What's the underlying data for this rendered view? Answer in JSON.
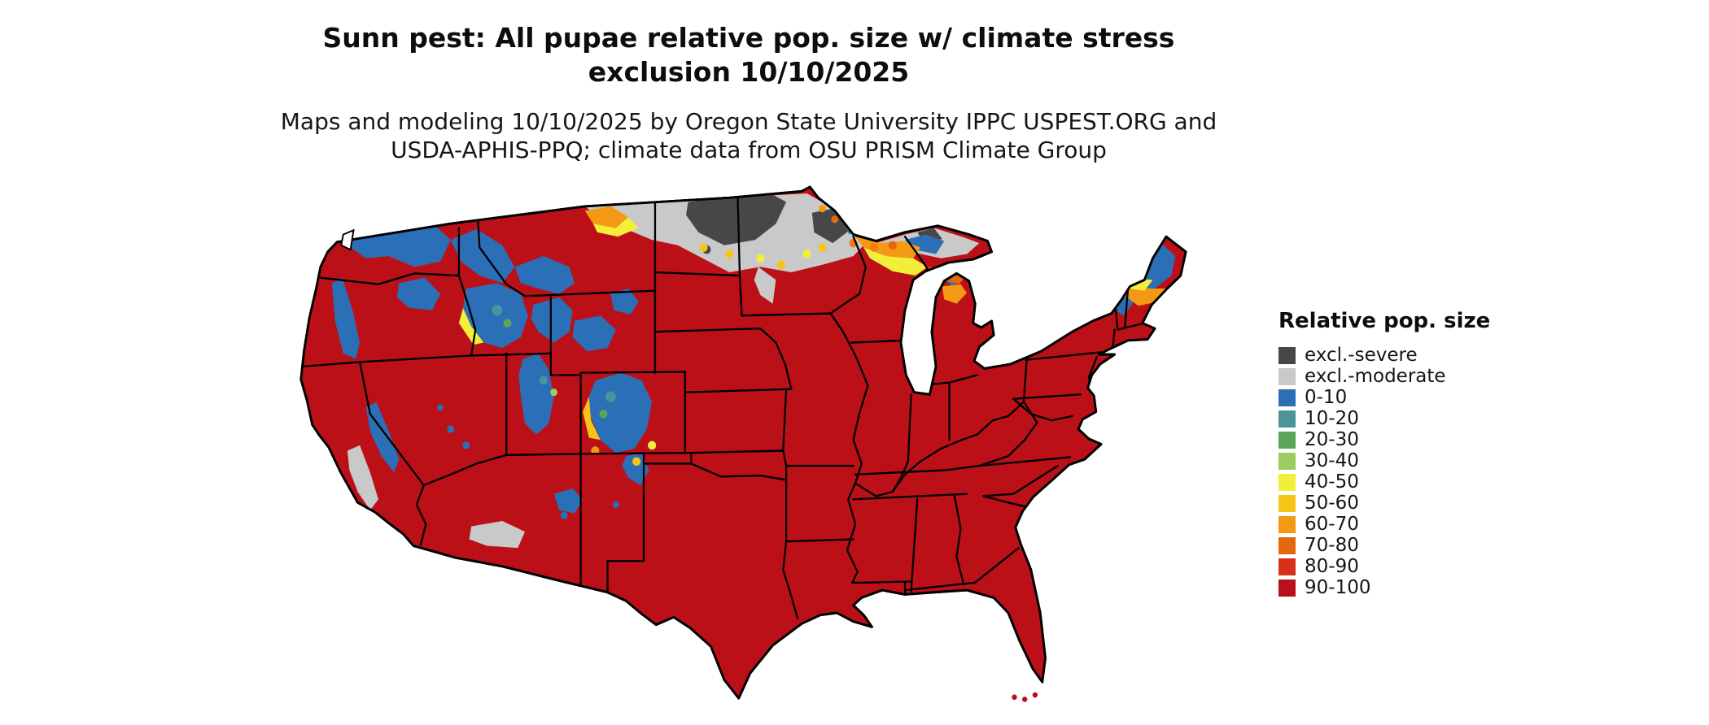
{
  "title": {
    "line1": "Sunn pest: All pupae relative pop. size w/ climate stress",
    "line2": "exclusion 10/10/2025"
  },
  "subtitle": {
    "line1": "Maps and modeling 10/10/2025 by Oregon State University IPPC USPEST.ORG and",
    "line2": "USDA-APHIS-PPQ; climate data from OSU PRISM Climate Group"
  },
  "legend": {
    "title": "Relative pop. size",
    "items": [
      {
        "label": "excl.-severe",
        "color": "#474747"
      },
      {
        "label": "excl.-moderate",
        "color": "#c9c9c9"
      },
      {
        "label": "0-10",
        "color": "#2b6fb7"
      },
      {
        "label": "10-20",
        "color": "#49959b"
      },
      {
        "label": "20-30",
        "color": "#5aa55a"
      },
      {
        "label": "30-40",
        "color": "#9ccb62"
      },
      {
        "label": "40-50",
        "color": "#f2ee3a"
      },
      {
        "label": "50-60",
        "color": "#f6c51a"
      },
      {
        "label": "60-70",
        "color": "#f49914"
      },
      {
        "label": "70-80",
        "color": "#e4680e"
      },
      {
        "label": "80-90",
        "color": "#d8301b"
      },
      {
        "label": "90-100",
        "color": "#b5121b"
      }
    ]
  },
  "map": {
    "region": "Contiguous United States",
    "base_color": "#bc1019",
    "exclusion_severe_color": "#474747",
    "exclusion_moderate_color": "#c9c9c9",
    "low_population_color": "#2b6fb7",
    "border_color": "#000000"
  }
}
